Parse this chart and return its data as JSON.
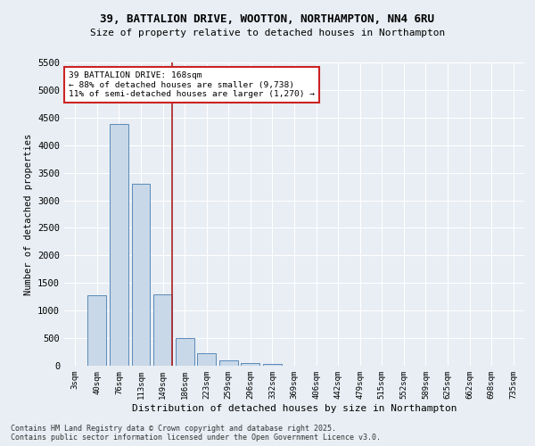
{
  "title_line1": "39, BATTALION DRIVE, WOOTTON, NORTHAMPTON, NN4 6RU",
  "title_line2": "Size of property relative to detached houses in Northampton",
  "xlabel": "Distribution of detached houses by size in Northampton",
  "ylabel": "Number of detached properties",
  "categories": [
    "3sqm",
    "40sqm",
    "76sqm",
    "113sqm",
    "149sqm",
    "186sqm",
    "223sqm",
    "259sqm",
    "296sqm",
    "332sqm",
    "369sqm",
    "406sqm",
    "442sqm",
    "479sqm",
    "515sqm",
    "552sqm",
    "589sqm",
    "625sqm",
    "662sqm",
    "698sqm",
    "735sqm"
  ],
  "values": [
    0,
    1270,
    4380,
    3300,
    1290,
    500,
    220,
    90,
    55,
    35,
    0,
    0,
    0,
    0,
    0,
    0,
    0,
    0,
    0,
    0,
    0
  ],
  "bar_color": "#c8d8e8",
  "bar_edge_color": "#5a8ab8",
  "vline_color": "#aa2222",
  "vline_pos": 4.42,
  "annotation_text": "39 BATTALION DRIVE: 168sqm\n← 88% of detached houses are smaller (9,738)\n11% of semi-detached houses are larger (1,270) →",
  "annotation_box_color": "#ffffff",
  "annotation_box_edge": "#cc2222",
  "ylim": [
    0,
    5500
  ],
  "yticks": [
    0,
    500,
    1000,
    1500,
    2000,
    2500,
    3000,
    3500,
    4000,
    4500,
    5000,
    5500
  ],
  "background_color": "#e8eef4",
  "footer_line1": "Contains HM Land Registry data © Crown copyright and database right 2025.",
  "footer_line2": "Contains public sector information licensed under the Open Government Licence v3.0."
}
